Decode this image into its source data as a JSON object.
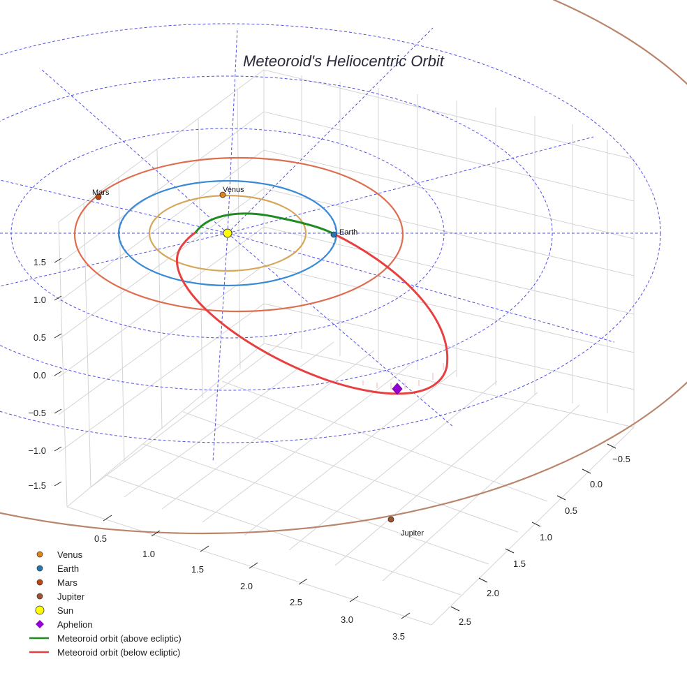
{
  "chart_data": {
    "type": "scatter3d",
    "title": "Meteoroid's Heliocentric Orbit",
    "x_ticks": [
      "0.5",
      "1.0",
      "1.5",
      "2.0",
      "2.5",
      "3.0",
      "3.5"
    ],
    "y_ticks": [
      "−0.5",
      "0.0",
      "0.5",
      "1.0",
      "1.5",
      "2.0",
      "2.5"
    ],
    "z_ticks": [
      "1.5",
      "1.0",
      "0.5",
      "0.0",
      "−0.5",
      "−1.0",
      "−1.5"
    ],
    "planets": [
      {
        "name": "Venus",
        "label": "Venus",
        "color": "#e38417",
        "orbit_color": "#d6a75a"
      },
      {
        "name": "Earth",
        "label": "Earth",
        "color": "#1f77b4",
        "orbit_color": "#3a8ad6"
      },
      {
        "name": "Mars",
        "label": "Mars",
        "color": "#c1440e",
        "orbit_color": "#dd6e4f"
      },
      {
        "name": "Jupiter",
        "label": "Jupiter",
        "color": "#a0522d",
        "orbit_color": "#b9856b"
      }
    ],
    "sun": {
      "name": "Sun",
      "color": "#ffff00"
    },
    "aphelion": {
      "name": "Aphelion",
      "color": "#9400d3"
    },
    "meteoroid_orbit": {
      "above_color": "#1e8c1e",
      "below_color": "#e84040"
    },
    "legend": [
      {
        "label": "Venus",
        "marker": "circle",
        "color": "#e38417"
      },
      {
        "label": "Earth",
        "marker": "circle",
        "color": "#1f77b4"
      },
      {
        "label": "Mars",
        "marker": "circle",
        "color": "#c1440e"
      },
      {
        "label": "Jupiter",
        "marker": "circle",
        "color": "#a0522d"
      },
      {
        "label": "Sun",
        "marker": "circle-large",
        "color": "#ffff00"
      },
      {
        "label": "Aphelion",
        "marker": "diamond",
        "color": "#9400d3"
      },
      {
        "label": "Meteoroid orbit (above ecliptic)",
        "marker": "line",
        "color": "#1e8c1e"
      },
      {
        "label": "Meteoroid orbit (below ecliptic)",
        "marker": "line",
        "color": "#e84040"
      }
    ],
    "legend_placement": "bottom-left",
    "grid": true
  }
}
